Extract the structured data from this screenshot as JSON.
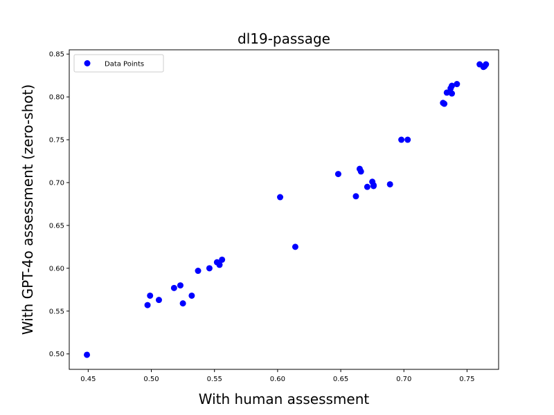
{
  "chart_data": {
    "type": "scatter",
    "title": "dl19-passage",
    "xlabel": "With human assessment",
    "ylabel": "With GPT-4o assessment (zero-shot)",
    "xlim": [
      0.435,
      0.775
    ],
    "ylim": [
      0.482,
      0.855
    ],
    "xticks": [
      "0.45",
      "0.50",
      "0.55",
      "0.60",
      "0.65",
      "0.70",
      "0.75"
    ],
    "yticks": [
      "0.50",
      "0.55",
      "0.60",
      "0.65",
      "0.70",
      "0.75",
      "0.80",
      "0.85"
    ],
    "grid": false,
    "legend": {
      "placement": "top-left",
      "entries": [
        "Data Points"
      ]
    },
    "series": [
      {
        "name": "Data Points",
        "color": "#0000ff",
        "marker": "circle",
        "points": [
          [
            0.449,
            0.499
          ],
          [
            0.497,
            0.557
          ],
          [
            0.499,
            0.568
          ],
          [
            0.506,
            0.563
          ],
          [
            0.518,
            0.577
          ],
          [
            0.523,
            0.58
          ],
          [
            0.525,
            0.559
          ],
          [
            0.532,
            0.568
          ],
          [
            0.537,
            0.597
          ],
          [
            0.546,
            0.6
          ],
          [
            0.552,
            0.607
          ],
          [
            0.554,
            0.604
          ],
          [
            0.556,
            0.61
          ],
          [
            0.602,
            0.683
          ],
          [
            0.614,
            0.625
          ],
          [
            0.648,
            0.71
          ],
          [
            0.662,
            0.684
          ],
          [
            0.665,
            0.716
          ],
          [
            0.666,
            0.713
          ],
          [
            0.671,
            0.695
          ],
          [
            0.675,
            0.701
          ],
          [
            0.676,
            0.696
          ],
          [
            0.676,
            0.697
          ],
          [
            0.689,
            0.698
          ],
          [
            0.698,
            0.75
          ],
          [
            0.703,
            0.75
          ],
          [
            0.731,
            0.793
          ],
          [
            0.732,
            0.792
          ],
          [
            0.734,
            0.805
          ],
          [
            0.737,
            0.81
          ],
          [
            0.738,
            0.804
          ],
          [
            0.738,
            0.813
          ],
          [
            0.742,
            0.815
          ],
          [
            0.76,
            0.838
          ],
          [
            0.763,
            0.835
          ],
          [
            0.764,
            0.836
          ],
          [
            0.765,
            0.838
          ]
        ]
      }
    ]
  }
}
